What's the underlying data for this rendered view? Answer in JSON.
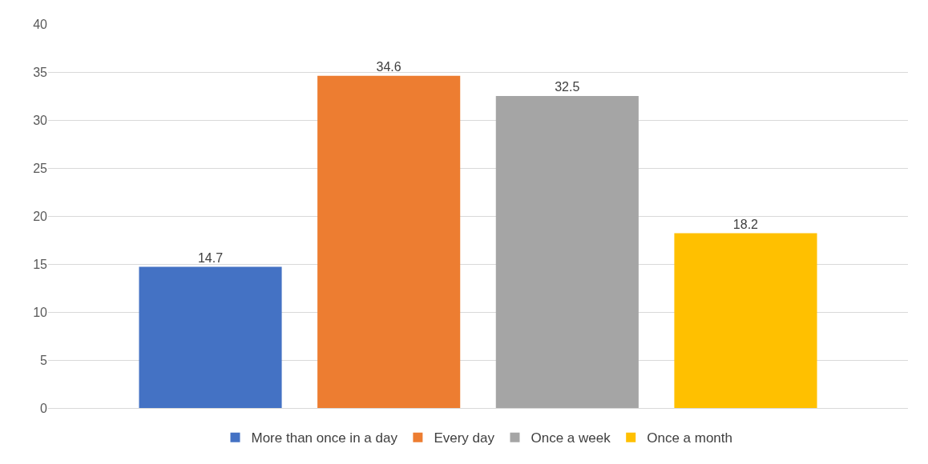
{
  "chart_data": {
    "type": "bar",
    "categories": [
      null
    ],
    "series": [
      {
        "name": "More than once in a day",
        "color": "#4472c4",
        "values": [
          14.7
        ]
      },
      {
        "name": "Every day",
        "color": "#ed7d31",
        "values": [
          34.6
        ]
      },
      {
        "name": "Once a week",
        "color": "#a5a5a5",
        "values": [
          32.5
        ]
      },
      {
        "name": "Once a month",
        "color": "#ffc000",
        "values": [
          18.2
        ]
      }
    ],
    "ylim": [
      0,
      40
    ],
    "yticks": [
      0,
      5,
      10,
      15,
      20,
      25,
      30,
      35,
      40
    ],
    "grid": "y",
    "legend": "bottom",
    "data_labels": true
  }
}
